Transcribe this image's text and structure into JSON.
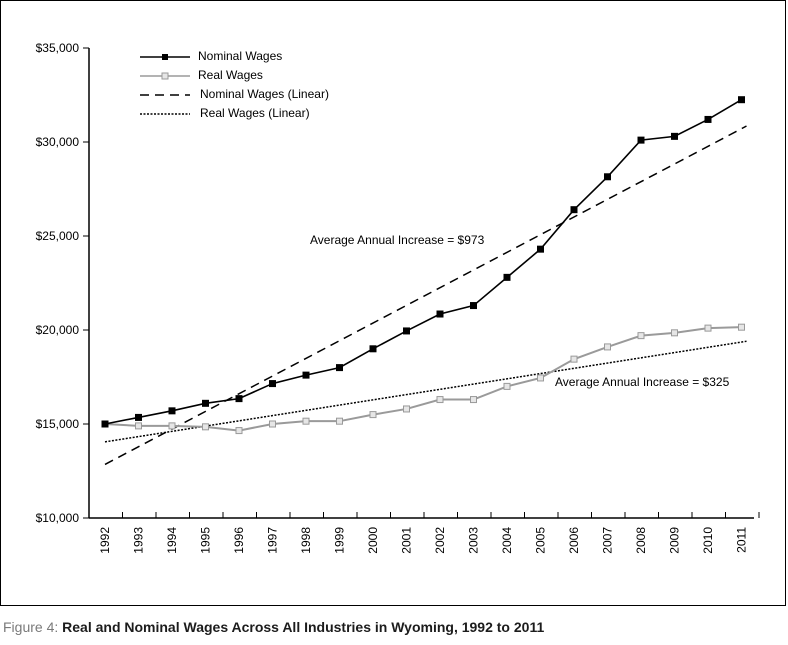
{
  "chart_data": {
    "type": "line",
    "title": "Real and Nominal Wages Across All Industries in Wyoming, 1992 to 2011",
    "xlabel": "",
    "ylabel": "",
    "categories": [
      "1992",
      "1993",
      "1994",
      "1995",
      "1996",
      "1997",
      "1998",
      "1999",
      "2000",
      "2001",
      "2002",
      "2003",
      "2004",
      "2005",
      "2006",
      "2007",
      "2008",
      "2009",
      "2010",
      "2011"
    ],
    "ylim": [
      10000,
      35000
    ],
    "yticks": [
      10000,
      15000,
      20000,
      25000,
      30000,
      35000
    ],
    "ytick_labels": [
      "$10,000",
      "$15,000",
      "$20,000",
      "$25,000",
      "$30,000",
      "$35,000"
    ],
    "series": [
      {
        "name": "Nominal Wages",
        "style": "solid-square-filled",
        "color": "#000000",
        "values": [
          15000,
          15350,
          15700,
          16100,
          16350,
          17150,
          17600,
          18000,
          19000,
          19950,
          20850,
          21300,
          22800,
          24300,
          26400,
          28150,
          30100,
          30300,
          31200,
          32250
        ]
      },
      {
        "name": "Real Wages",
        "style": "solid-square-hollow",
        "color": "#9a9a9a",
        "values": [
          15000,
          14900,
          14900,
          14850,
          14650,
          15000,
          15150,
          15150,
          15500,
          15800,
          16300,
          16300,
          17000,
          17450,
          18450,
          19100,
          19700,
          19850,
          20100,
          20150
        ]
      }
    ],
    "trendlines": [
      {
        "name": "Nominal Wages (Linear)",
        "style": "dashed",
        "start": 12850,
        "end": 30850
      },
      {
        "name": "Real Wages (Linear)",
        "style": "dotted",
        "start": 14050,
        "end": 19400
      }
    ],
    "annotations": [
      {
        "text": "Average Annual Increase = $973",
        "anchor": "nominal-trend"
      },
      {
        "text": "Average Annual Increase = $325",
        "anchor": "real-trend"
      }
    ],
    "legend_position": "top-left",
    "legend": [
      "Nominal Wages",
      "Real Wages",
      "Nominal Wages (Linear)",
      "Real Wages (Linear)"
    ]
  },
  "caption": {
    "label": "Figure 4:",
    "text": "Real and Nominal Wages Across All Industries in Wyoming, 1992 to 2011"
  }
}
